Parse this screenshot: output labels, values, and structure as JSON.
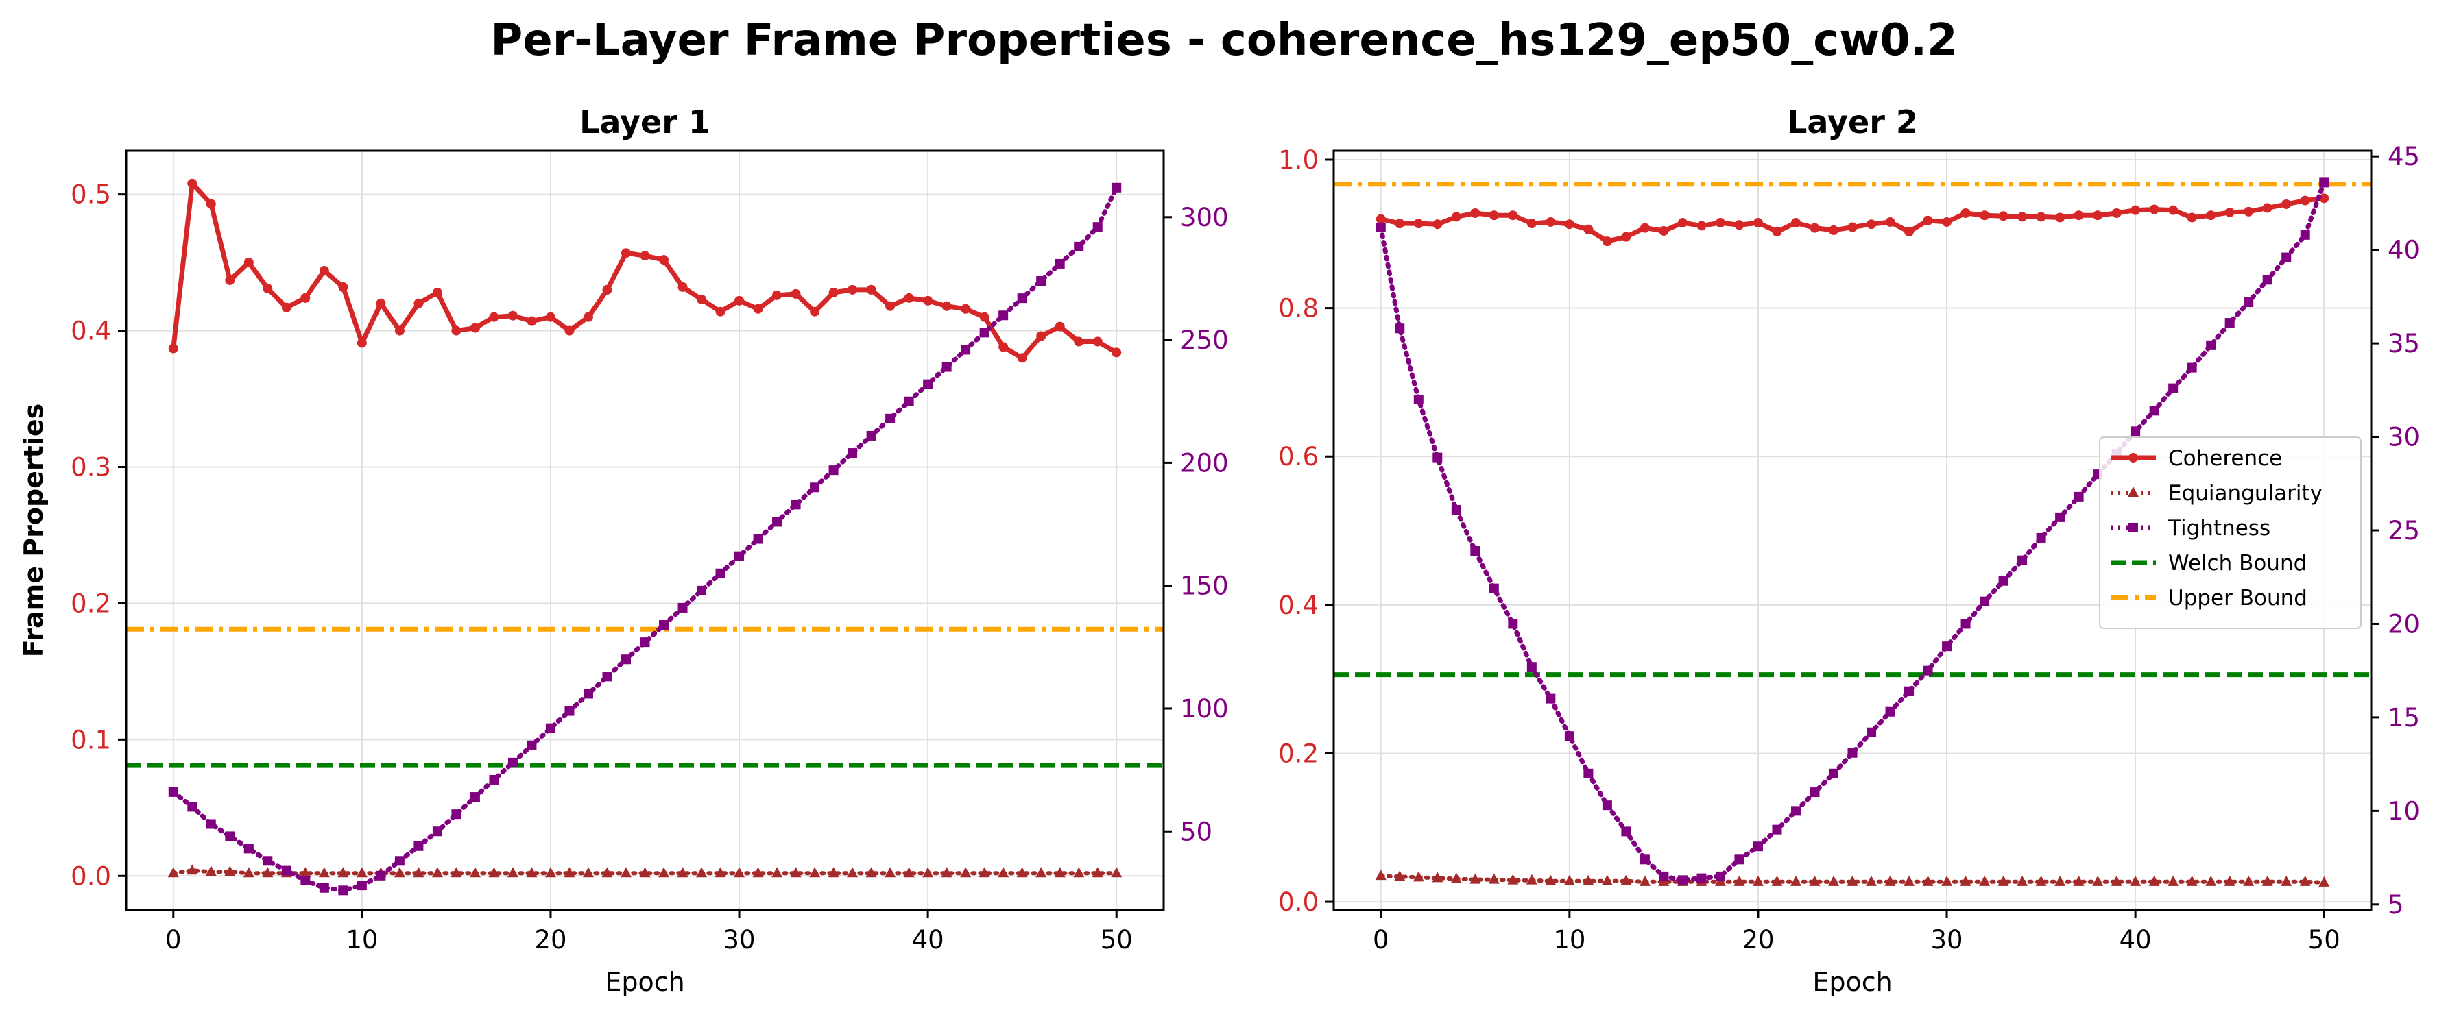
{
  "figure": {
    "title": "Per-Layer Frame Properties - coherence_hs129_ep50_cw0.2"
  },
  "colors": {
    "coherence": "#d62728",
    "equiangularity": "#a52a2a",
    "tightness": "#800080",
    "welch": "#008000",
    "upper": "#ffa500",
    "grid": "#e0e0e0"
  },
  "chart_data": [
    {
      "type": "line",
      "title": "Layer 1",
      "xlabel": "Epoch",
      "ylabel": "Frame Properties",
      "xlim": [
        -2.5,
        52.5
      ],
      "ylim": [
        -0.025,
        0.532
      ],
      "y2lim": [
        18,
        327
      ],
      "xticks": [
        0,
        10,
        20,
        30,
        40,
        50
      ],
      "yticks": [
        0.0,
        0.1,
        0.2,
        0.3,
        0.4,
        0.5
      ],
      "y2ticks": [
        50,
        100,
        150,
        200,
        250,
        300
      ],
      "grid": true,
      "x": [
        0,
        1,
        2,
        3,
        4,
        5,
        6,
        7,
        8,
        9,
        10,
        11,
        12,
        13,
        14,
        15,
        16,
        17,
        18,
        19,
        20,
        21,
        22,
        23,
        24,
        25,
        26,
        27,
        28,
        29,
        30,
        31,
        32,
        33,
        34,
        35,
        36,
        37,
        38,
        39,
        40,
        41,
        42,
        43,
        44,
        45,
        46,
        47,
        48,
        49,
        50
      ],
      "series": [
        {
          "name": "Coherence",
          "axis": "left",
          "style": "solid-dot",
          "values": [
            0.387,
            0.508,
            0.493,
            0.437,
            0.45,
            0.431,
            0.417,
            0.424,
            0.444,
            0.432,
            0.391,
            0.42,
            0.4,
            0.42,
            0.428,
            0.4,
            0.402,
            0.41,
            0.411,
            0.407,
            0.41,
            0.4,
            0.41,
            0.43,
            0.457,
            0.455,
            0.452,
            0.432,
            0.423,
            0.414,
            0.422,
            0.416,
            0.426,
            0.427,
            0.414,
            0.428,
            0.43,
            0.43,
            0.418,
            0.424,
            0.422,
            0.418,
            0.416,
            0.41,
            0.388,
            0.38,
            0.396,
            0.403,
            0.392,
            0.392,
            0.384
          ]
        },
        {
          "name": "Equiangularity",
          "axis": "left",
          "style": "dotted-triangle",
          "values": [
            0.002,
            0.004,
            0.003,
            0.003,
            0.002,
            0.002,
            0.002,
            0.002,
            0.002,
            0.002,
            0.002,
            0.002,
            0.002,
            0.002,
            0.002,
            0.002,
            0.002,
            0.002,
            0.002,
            0.002,
            0.002,
            0.002,
            0.002,
            0.002,
            0.002,
            0.002,
            0.002,
            0.002,
            0.002,
            0.002,
            0.002,
            0.002,
            0.002,
            0.002,
            0.002,
            0.002,
            0.002,
            0.002,
            0.002,
            0.002,
            0.002,
            0.002,
            0.002,
            0.002,
            0.002,
            0.002,
            0.002,
            0.002,
            0.002,
            0.002,
            0.002
          ]
        },
        {
          "name": "Tightness",
          "axis": "right",
          "style": "dotted-square",
          "values": [
            66,
            60,
            53,
            48,
            43,
            38,
            34,
            30,
            27,
            26,
            28,
            32,
            38,
            44,
            50,
            57,
            64,
            71,
            78,
            85,
            92,
            99,
            106,
            113,
            120,
            127,
            134,
            141,
            148,
            155,
            162,
            169,
            176,
            183,
            190,
            197,
            204,
            211,
            218,
            225,
            232,
            239,
            246,
            253,
            260,
            267,
            274,
            281,
            288,
            296,
            312
          ]
        }
      ],
      "hlines": [
        {
          "name": "Welch Bound",
          "axis": "left",
          "value": 0.081,
          "style": "dashed"
        },
        {
          "name": "Upper Bound",
          "axis": "left",
          "value": 0.181,
          "style": "dashdot"
        }
      ]
    },
    {
      "type": "line",
      "title": "Layer 2",
      "xlabel": "Epoch",
      "ylabel": "",
      "xlim": [
        -2.5,
        52.5
      ],
      "ylim": [
        -0.011,
        1.012
      ],
      "y2lim": [
        4.7,
        45.3
      ],
      "xticks": [
        0,
        10,
        20,
        30,
        40,
        50
      ],
      "yticks": [
        0.0,
        0.2,
        0.4,
        0.6,
        0.8,
        1.0
      ],
      "y2ticks": [
        5,
        10,
        15,
        20,
        25,
        30,
        35,
        40,
        45
      ],
      "grid": true,
      "legend": "center-right",
      "x": [
        0,
        1,
        2,
        3,
        4,
        5,
        6,
        7,
        8,
        9,
        10,
        11,
        12,
        13,
        14,
        15,
        16,
        17,
        18,
        19,
        20,
        21,
        22,
        23,
        24,
        25,
        26,
        27,
        28,
        29,
        30,
        31,
        32,
        33,
        34,
        35,
        36,
        37,
        38,
        39,
        40,
        41,
        42,
        43,
        44,
        45,
        46,
        47,
        48,
        49,
        50
      ],
      "series": [
        {
          "name": "Coherence",
          "axis": "left",
          "style": "solid-dot",
          "values": [
            0.92,
            0.914,
            0.914,
            0.913,
            0.923,
            0.928,
            0.925,
            0.925,
            0.914,
            0.916,
            0.913,
            0.906,
            0.89,
            0.896,
            0.908,
            0.904,
            0.915,
            0.911,
            0.915,
            0.912,
            0.915,
            0.903,
            0.915,
            0.908,
            0.905,
            0.909,
            0.913,
            0.916,
            0.903,
            0.918,
            0.916,
            0.928,
            0.925,
            0.924,
            0.923,
            0.923,
            0.922,
            0.925,
            0.925,
            0.928,
            0.932,
            0.933,
            0.932,
            0.922,
            0.925,
            0.929,
            0.93,
            0.935,
            0.94,
            0.945,
            0.948
          ]
        },
        {
          "name": "Equiangularity",
          "axis": "left",
          "style": "dotted-triangle",
          "values": [
            0.035,
            0.034,
            0.033,
            0.032,
            0.031,
            0.03,
            0.03,
            0.029,
            0.029,
            0.028,
            0.028,
            0.028,
            0.028,
            0.028,
            0.027,
            0.027,
            0.027,
            0.027,
            0.027,
            0.027,
            0.027,
            0.027,
            0.027,
            0.027,
            0.027,
            0.027,
            0.027,
            0.027,
            0.027,
            0.027,
            0.027,
            0.027,
            0.027,
            0.027,
            0.027,
            0.027,
            0.027,
            0.027,
            0.027,
            0.027,
            0.027,
            0.027,
            0.027,
            0.027,
            0.027,
            0.027,
            0.027,
            0.027,
            0.027,
            0.027,
            0.026
          ]
        },
        {
          "name": "Tightness",
          "axis": "right",
          "style": "dotted-square",
          "values": [
            41.2,
            35.8,
            32.0,
            28.9,
            26.1,
            23.9,
            21.9,
            20.0,
            17.7,
            16.0,
            14.0,
            12.0,
            10.3,
            8.9,
            7.4,
            6.5,
            6.3,
            6.4,
            6.5,
            7.4,
            8.1,
            9.0,
            10.0,
            11.0,
            12.0,
            13.1,
            14.2,
            15.3,
            16.4,
            17.5,
            18.8,
            20.0,
            21.2,
            22.3,
            23.4,
            24.6,
            25.7,
            26.8,
            28.0,
            29.1,
            30.3,
            31.4,
            32.6,
            33.7,
            34.9,
            36.1,
            37.2,
            38.4,
            39.6,
            40.8,
            43.6
          ]
        }
      ],
      "hlines": [
        {
          "name": "Welch Bound",
          "axis": "left",
          "value": 0.306,
          "style": "dashed"
        },
        {
          "name": "Upper Bound",
          "axis": "left",
          "value": 0.967,
          "style": "dashdot"
        }
      ]
    }
  ]
}
